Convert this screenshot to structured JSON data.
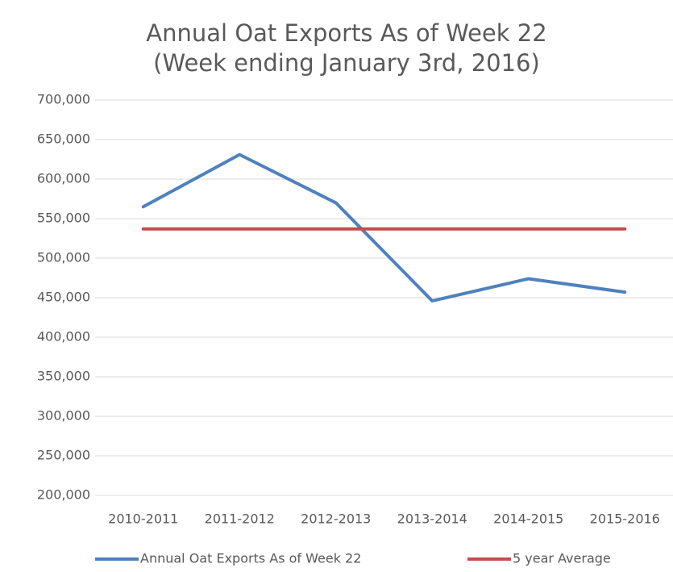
{
  "chart_data": {
    "type": "line",
    "title": "Annual Oat Exports As of Week 22",
    "subtitle": "(Week ending January 3rd, 2016)",
    "categories": [
      "2010-2011",
      "2011-2012",
      "2012-2013",
      "2013-2014",
      "2014-2015",
      "2015-2016"
    ],
    "series": [
      {
        "name": "Annual Oat Exports As of Week 22",
        "color": "#4f81bd",
        "values": [
          565000,
          631000,
          570000,
          446000,
          474000,
          457000
        ]
      },
      {
        "name": "5 year Average",
        "color": "#c0504d",
        "values": [
          537000,
          537000,
          537000,
          537000,
          537000,
          537000
        ]
      }
    ],
    "ylim": [
      200000,
      700000
    ],
    "yticks": [
      {
        "value": 200000,
        "label": "200,000"
      },
      {
        "value": 250000,
        "label": "250,000"
      },
      {
        "value": 300000,
        "label": "300,000"
      },
      {
        "value": 350000,
        "label": "350,000"
      },
      {
        "value": 400000,
        "label": "400,000"
      },
      {
        "value": 450000,
        "label": "450,000"
      },
      {
        "value": 500000,
        "label": "500,000"
      },
      {
        "value": 550000,
        "label": "550,000"
      },
      {
        "value": 600000,
        "label": "600,000"
      },
      {
        "value": 650000,
        "label": "650,000"
      },
      {
        "value": 700000,
        "label": "700,000"
      }
    ],
    "grid": true,
    "legend": "bottom"
  }
}
